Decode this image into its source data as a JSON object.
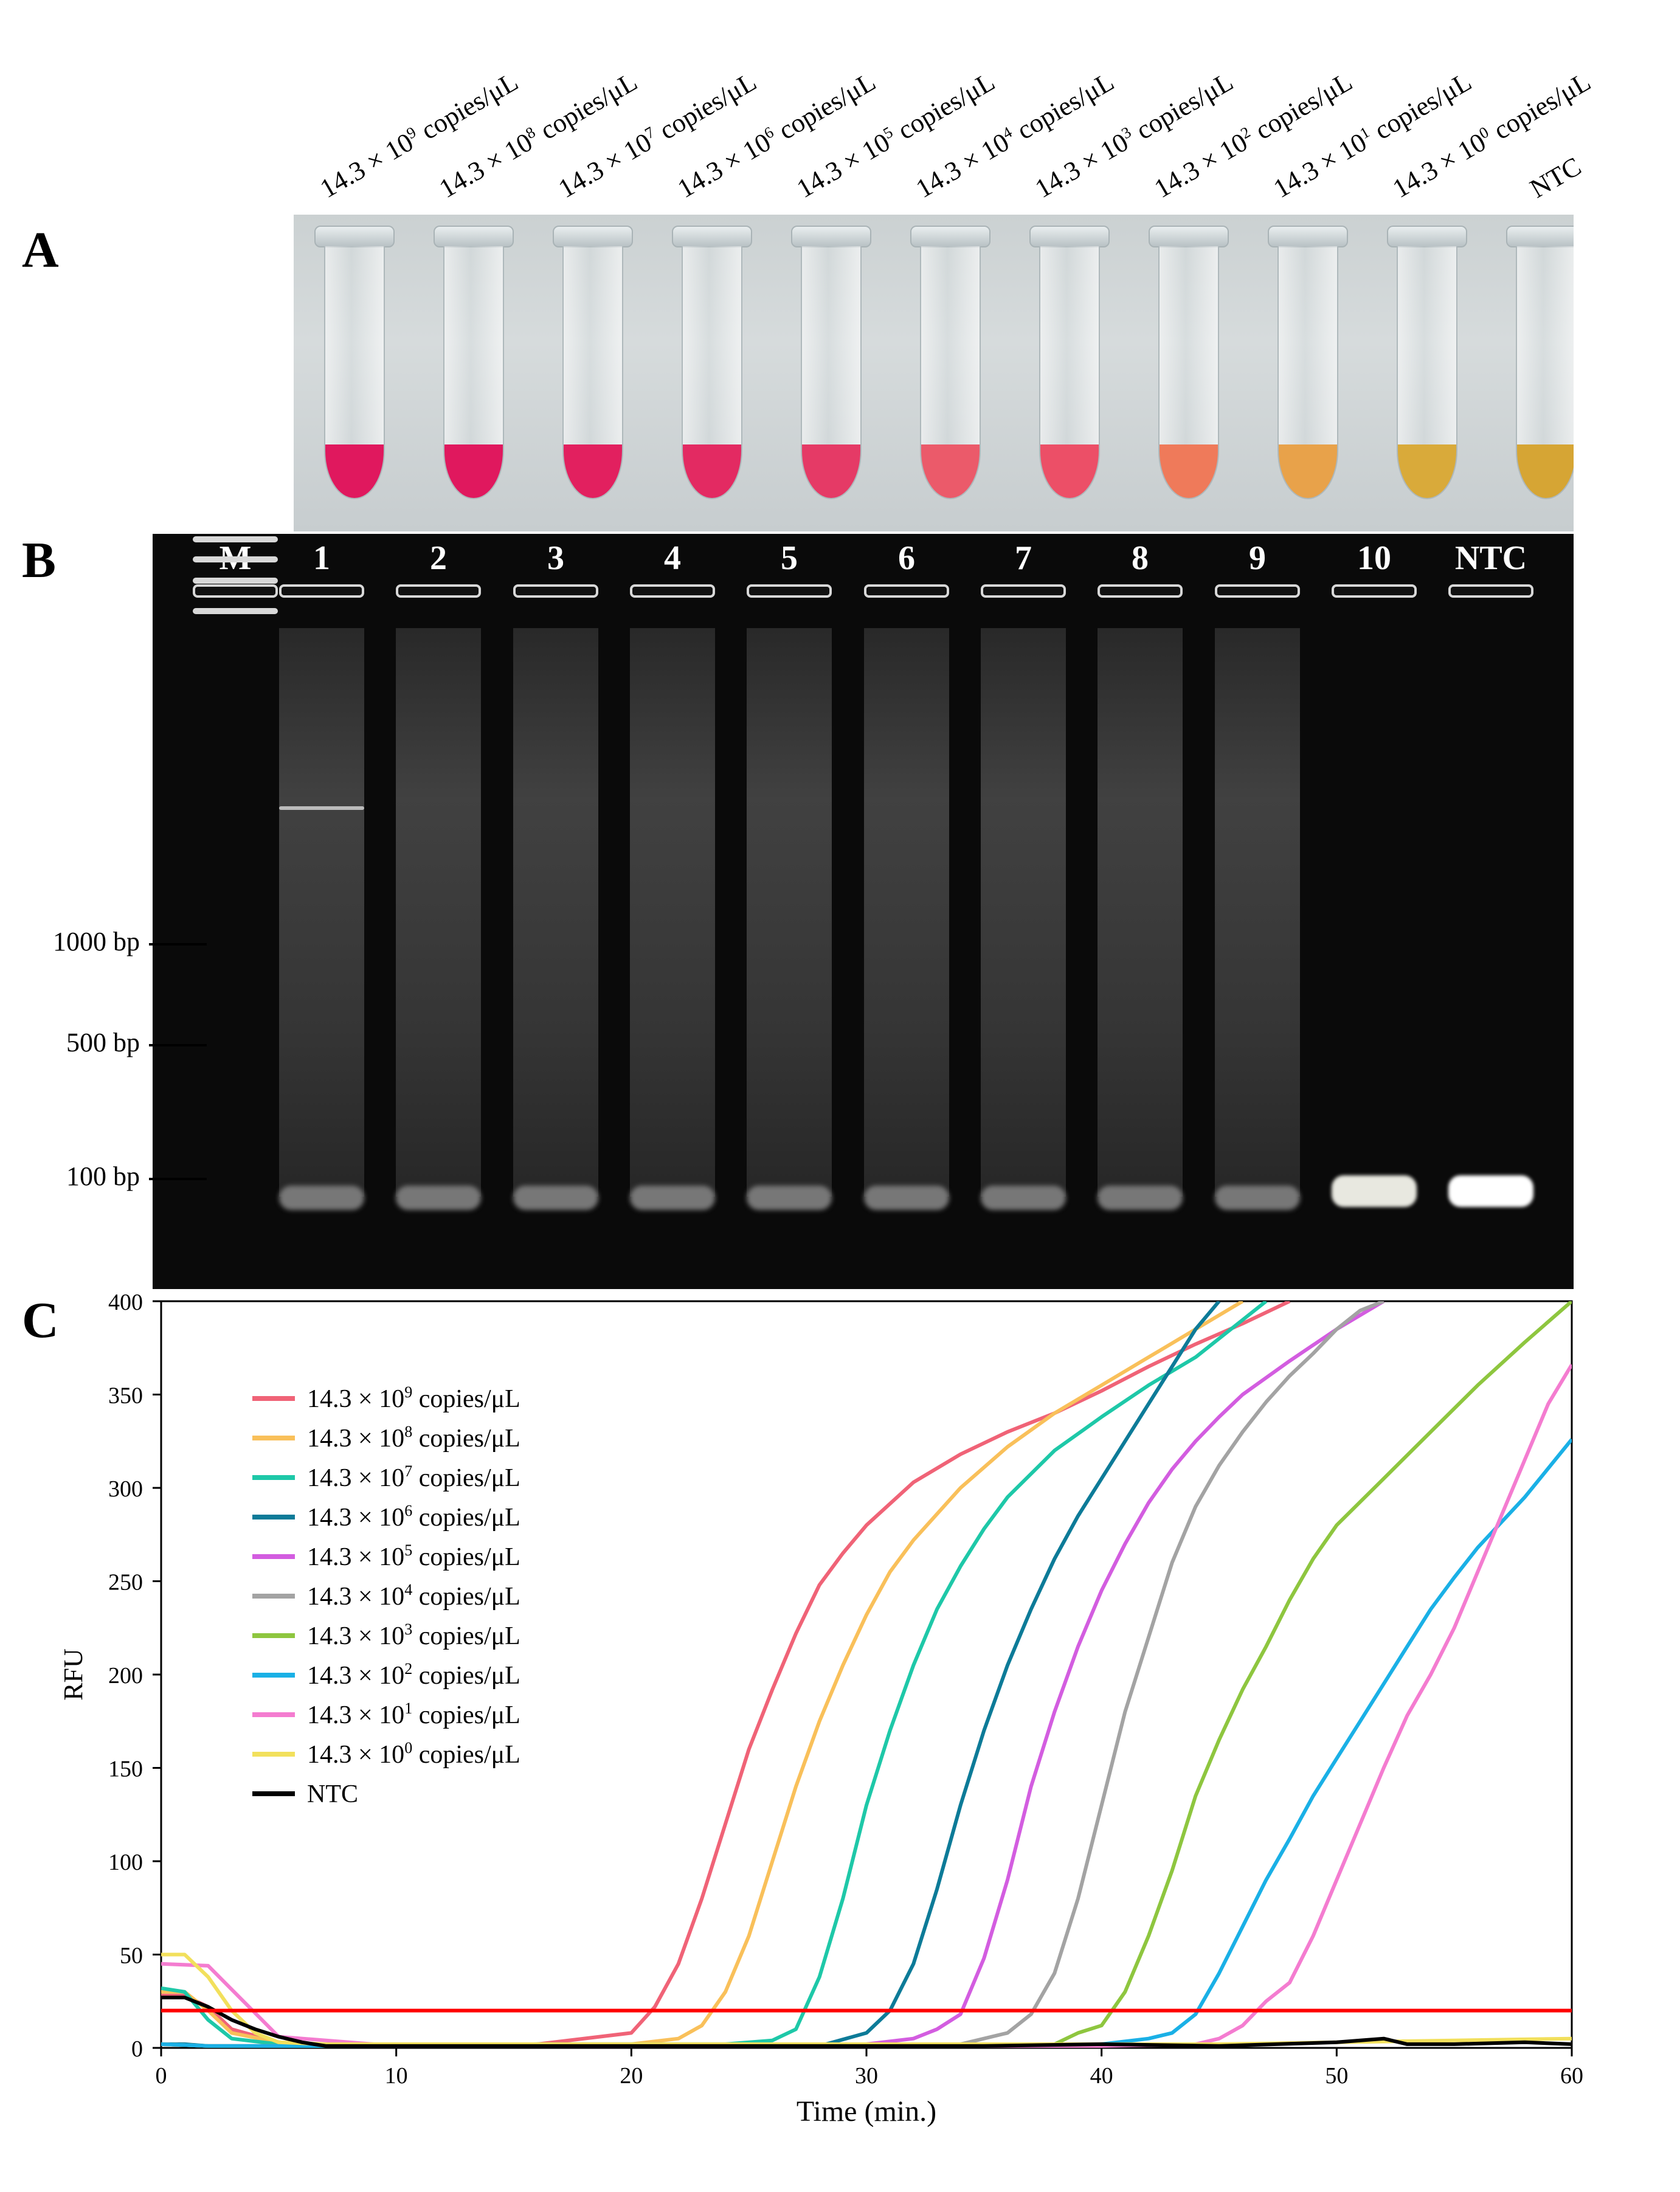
{
  "panels": {
    "a": "A",
    "b": "B",
    "c": "C"
  },
  "tube_labels": [
    {
      "base": "14.3 × 10",
      "exp": "9",
      "unit": " copies/μL"
    },
    {
      "base": "14.3 × 10",
      "exp": "8",
      "unit": " copies/μL"
    },
    {
      "base": "14.3 × 10",
      "exp": "7",
      "unit": " copies/μL"
    },
    {
      "base": "14.3 × 10",
      "exp": "6",
      "unit": " copies/μL"
    },
    {
      "base": "14.3 × 10",
      "exp": "5",
      "unit": " copies/μL"
    },
    {
      "base": "14.3 × 10",
      "exp": "4",
      "unit": " copies/μL"
    },
    {
      "base": "14.3 × 10",
      "exp": "3",
      "unit": " copies/μL"
    },
    {
      "base": "14.3 × 10",
      "exp": "2",
      "unit": " copies/μL"
    },
    {
      "base": "14.3 × 10",
      "exp": "1",
      "unit": " copies/μL"
    },
    {
      "base": "14.3 × 10",
      "exp": "0",
      "unit": " copies/μL"
    },
    {
      "base": "NTC",
      "exp": "",
      "unit": ""
    }
  ],
  "tube_colors": [
    "#e0185e",
    "#e0185e",
    "#e2205f",
    "#e32a62",
    "#e53a66",
    "#eb5a6a",
    "#ec4f67",
    "#ef7a5a",
    "#e8a24a",
    "#d9aa3a",
    "#d6a534"
  ],
  "gel": {
    "lanes": [
      "M",
      "1",
      "2",
      "3",
      "4",
      "5",
      "6",
      "7",
      "8",
      "9",
      "10",
      "NTC"
    ],
    "markers": [
      "1000 bp",
      "500 bp",
      "100 bp"
    ]
  },
  "chart_data": {
    "type": "line",
    "xlabel": "Time (min.)",
    "ylabel": "RFU",
    "xlim": [
      0,
      60
    ],
    "ylim": [
      0,
      400
    ],
    "xticks": [
      0,
      10,
      20,
      30,
      40,
      50,
      60
    ],
    "yticks": [
      0,
      50,
      100,
      150,
      200,
      250,
      300,
      350,
      400
    ],
    "threshold": {
      "y": 20,
      "color": "#ff0000"
    },
    "legend_position": "top-left",
    "series": [
      {
        "name_base": "14.3 × 10",
        "exp": "9",
        "unit": " copies/μL",
        "color": "#f06377",
        "x": [
          0,
          1,
          2,
          3,
          5,
          8,
          12,
          16,
          20,
          21,
          22,
          23,
          24,
          25,
          26,
          27,
          28,
          29,
          30,
          32,
          34,
          36,
          38,
          40,
          42,
          44,
          46,
          48
        ],
        "y": [
          28,
          28,
          22,
          10,
          3,
          1,
          1,
          2,
          8,
          22,
          45,
          80,
          120,
          160,
          192,
          222,
          248,
          265,
          280,
          303,
          318,
          330,
          340,
          352,
          365,
          377,
          388,
          400
        ]
      },
      {
        "name_base": "14.3 × 10",
        "exp": "8",
        "unit": " copies/μL",
        "color": "#f9c05a",
        "x": [
          0,
          1,
          2,
          3,
          5,
          8,
          12,
          16,
          20,
          22,
          23,
          24,
          25,
          26,
          27,
          28,
          29,
          30,
          31,
          32,
          34,
          36,
          38,
          40,
          42,
          44,
          46
        ],
        "y": [
          30,
          30,
          20,
          8,
          3,
          1,
          1,
          2,
          2,
          5,
          12,
          30,
          60,
          100,
          140,
          175,
          205,
          232,
          255,
          272,
          300,
          322,
          340,
          355,
          370,
          385,
          400
        ]
      },
      {
        "name_base": "14.3 × 10",
        "exp": "7",
        "unit": " copies/μL",
        "color": "#1ec8a8",
        "x": [
          0,
          1,
          2,
          3,
          5,
          8,
          12,
          16,
          20,
          24,
          26,
          27,
          28,
          29,
          30,
          31,
          32,
          33,
          34,
          35,
          36,
          38,
          40,
          42,
          44,
          46,
          47
        ],
        "y": [
          32,
          30,
          15,
          5,
          2,
          1,
          1,
          2,
          2,
          2,
          4,
          10,
          38,
          80,
          130,
          170,
          205,
          235,
          258,
          278,
          295,
          320,
          338,
          355,
          370,
          390,
          400
        ]
      },
      {
        "name_base": "14.3 × 10",
        "exp": "6",
        "unit": " copies/μL",
        "color": "#0d7b98",
        "x": [
          0,
          1,
          2,
          3,
          5,
          8,
          12,
          16,
          20,
          24,
          28,
          30,
          31,
          32,
          33,
          34,
          35,
          36,
          37,
          38,
          39,
          40,
          41,
          42,
          43,
          44,
          45
        ],
        "y": [
          2,
          2,
          1,
          1,
          1,
          1,
          1,
          1,
          1,
          1,
          1,
          8,
          20,
          45,
          85,
          130,
          170,
          205,
          235,
          262,
          285,
          305,
          325,
          345,
          365,
          385,
          400
        ]
      },
      {
        "name_base": "14.3 × 10",
        "exp": "5",
        "unit": " copies/μL",
        "color": "#d35de0",
        "x": [
          0,
          2,
          5,
          10,
          15,
          20,
          25,
          30,
          32,
          33,
          34,
          35,
          36,
          37,
          38,
          39,
          40,
          41,
          42,
          43,
          44,
          45,
          46,
          48,
          50,
          52
        ],
        "y": [
          2,
          1,
          1,
          1,
          1,
          1,
          1,
          2,
          5,
          10,
          18,
          48,
          90,
          140,
          180,
          215,
          245,
          270,
          292,
          310,
          325,
          338,
          350,
          368,
          385,
          400
        ]
      },
      {
        "name_base": "14.3 × 10",
        "exp": "4",
        "unit": " copies/μL",
        "color": "#a3a3a3",
        "x": [
          0,
          2,
          5,
          10,
          15,
          20,
          25,
          30,
          34,
          36,
          37,
          38,
          39,
          40,
          41,
          42,
          43,
          44,
          45,
          46,
          47,
          48,
          49,
          50,
          51,
          52
        ],
        "y": [
          2,
          1,
          1,
          1,
          1,
          1,
          1,
          1,
          2,
          8,
          18,
          40,
          80,
          130,
          180,
          220,
          260,
          290,
          312,
          330,
          346,
          360,
          372,
          385,
          395,
          400
        ]
      },
      {
        "name_base": "14.3 × 10",
        "exp": "3",
        "unit": " copies/μL",
        "color": "#8ec63f",
        "x": [
          0,
          2,
          5,
          10,
          15,
          20,
          25,
          30,
          35,
          38,
          39,
          40,
          41,
          42,
          43,
          44,
          45,
          46,
          47,
          48,
          49,
          50,
          52,
          54,
          56,
          58,
          60
        ],
        "y": [
          2,
          1,
          1,
          1,
          1,
          1,
          1,
          1,
          1,
          2,
          8,
          12,
          30,
          60,
          95,
          135,
          165,
          192,
          215,
          240,
          262,
          280,
          305,
          330,
          355,
          378,
          400
        ]
      },
      {
        "name_base": "14.3 × 10",
        "exp": "2",
        "unit": " copies/μL",
        "color": "#1ab0e6",
        "x": [
          0,
          2,
          5,
          10,
          15,
          20,
          25,
          30,
          35,
          40,
          42,
          43,
          44,
          45,
          46,
          47,
          48,
          49,
          50,
          51,
          52,
          53,
          54,
          55,
          56,
          58,
          60
        ],
        "y": [
          2,
          1,
          1,
          1,
          1,
          1,
          1,
          1,
          1,
          2,
          5,
          8,
          18,
          40,
          65,
          90,
          112,
          135,
          155,
          175,
          195,
          215,
          235,
          252,
          268,
          295,
          326
        ]
      },
      {
        "name_base": "14.3 × 10",
        "exp": "1",
        "unit": " copies/μL",
        "color": "#f47cd0",
        "x": [
          0,
          2,
          5,
          10,
          15,
          20,
          25,
          30,
          35,
          40,
          44,
          45,
          46,
          47,
          48,
          49,
          50,
          51,
          52,
          53,
          54,
          55,
          56,
          57,
          58,
          59,
          60
        ],
        "y": [
          45,
          44,
          6,
          1,
          1,
          1,
          1,
          1,
          1,
          1,
          2,
          5,
          12,
          25,
          35,
          60,
          90,
          120,
          150,
          178,
          200,
          225,
          255,
          285,
          315,
          345,
          366
        ]
      },
      {
        "name_base": "14.3 × 10",
        "exp": "0",
        "unit": " copies/μL",
        "color": "#f2e05c",
        "x": [
          0,
          1,
          2,
          3,
          4,
          5,
          7,
          10,
          15,
          20,
          25,
          30,
          35,
          40,
          45,
          50,
          55,
          60
        ],
        "y": [
          50,
          50,
          38,
          20,
          8,
          3,
          2,
          2,
          2,
          2,
          2,
          2,
          2,
          2,
          2,
          3,
          4,
          5
        ]
      },
      {
        "name_base": "NTC",
        "exp": "",
        "unit": "",
        "color": "#000000",
        "x": [
          0,
          1,
          2,
          3,
          4,
          5,
          6,
          7,
          10,
          15,
          20,
          25,
          30,
          35,
          40,
          45,
          50,
          52,
          53,
          55,
          58,
          60
        ],
        "y": [
          27,
          27,
          22,
          15,
          10,
          6,
          3,
          1,
          1,
          1,
          1,
          1,
          1,
          1,
          2,
          1,
          3,
          5,
          2,
          2,
          3,
          2
        ]
      }
    ]
  }
}
